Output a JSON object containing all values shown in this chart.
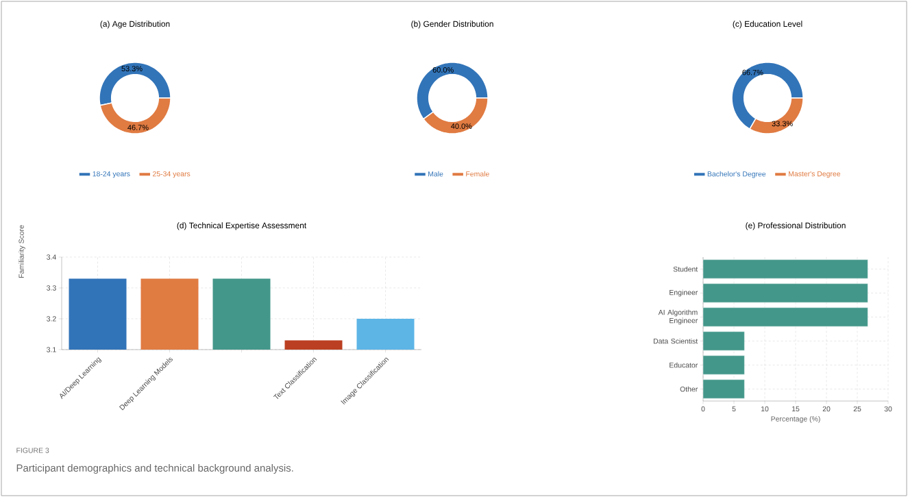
{
  "chart_data": [
    {
      "type": "donut",
      "title": "(a) Age Distribution",
      "categories": [
        "18-24 years",
        "25-34 years"
      ],
      "values": [
        53.3,
        46.7
      ],
      "value_labels": [
        "53.3%",
        "46.7%"
      ],
      "colors": [
        "#3274b8",
        "#e07b42"
      ],
      "legend": "bottom"
    },
    {
      "type": "donut",
      "title": "(b) Gender Distribution",
      "categories": [
        "Male",
        "Female"
      ],
      "values": [
        60.0,
        40.0
      ],
      "value_labels": [
        "60.0%",
        "40.0%"
      ],
      "colors": [
        "#3274b8",
        "#e07b42"
      ],
      "legend": "bottom"
    },
    {
      "type": "donut",
      "title": "(c) Education Level",
      "categories": [
        "Bachelor's Degree",
        "Master's Degree"
      ],
      "values": [
        66.7,
        33.3
      ],
      "value_labels": [
        "66.7%",
        "33.3%"
      ],
      "colors": [
        "#3274b8",
        "#e07b42"
      ],
      "legend": "bottom"
    },
    {
      "type": "bar",
      "title": "(d) Technical Expertise Assessment",
      "ylabel": "Familiarity Score",
      "categories": [
        "AI/Deep Learning",
        "Deep Learning Models",
        null,
        "Text Classification",
        "Image Classification"
      ],
      "values": [
        3.33,
        3.33,
        3.33,
        3.13,
        3.2
      ],
      "colors": [
        "#3274b8",
        "#e07b42",
        "#43978a",
        "#bb3f22",
        "#5db5e6"
      ],
      "ylim": [
        3.1,
        3.4
      ],
      "yticks": [
        3.1,
        3.2,
        3.3,
        3.4
      ],
      "grid": true
    },
    {
      "type": "bar",
      "orientation": "horizontal",
      "title": "(e) Professional Distribution",
      "xlabel": "Percentage (%)",
      "categories": [
        "Student",
        "Engineer",
        "AI Algorithm Engineer",
        "Data Scientist",
        "Educator",
        "Other"
      ],
      "values": [
        26.7,
        26.7,
        26.7,
        6.7,
        6.7,
        6.7
      ],
      "colors": [
        "#43978a",
        "#43978a",
        "#43978a",
        "#43978a",
        "#43978a",
        "#43978a"
      ],
      "xlim": [
        0,
        30
      ],
      "xticks": [
        0,
        5,
        10,
        15,
        20,
        25,
        30
      ],
      "grid": true,
      "annotations": [
        "FIGURE 3",
        "Participant demographics and technical background analysis."
      ]
    }
  ]
}
